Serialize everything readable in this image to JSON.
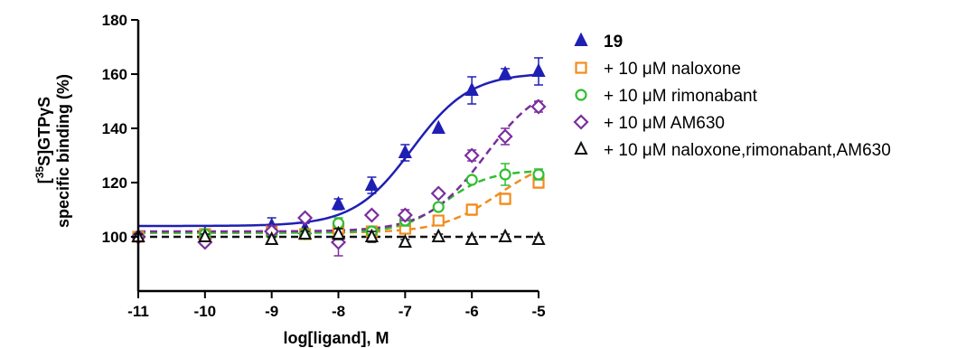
{
  "chart_data": {
    "type": "scatter",
    "xlabel": "log[ligand], M",
    "ylabel_line1": "[35S]GTPγS",
    "ylabel_line1_parts": {
      "open": "[",
      "sup": "35",
      "rest": "S]GTPγS"
    },
    "ylabel_line2": "specific binding (%)",
    "xlim": [
      -11,
      -5
    ],
    "ylim": [
      80,
      180
    ],
    "x_ticks": [
      -11,
      -10,
      -9,
      -8,
      -7,
      -6,
      -5
    ],
    "y_ticks": [
      100,
      120,
      140,
      160,
      180
    ],
    "grid": false,
    "legend_position": "right",
    "series": [
      {
        "name": "19",
        "color": "#1f1fb4",
        "marker": "triangle-filled",
        "line": "solid",
        "x": [
          -11,
          -10,
          -9,
          -8.5,
          -8,
          -7.5,
          -7,
          -6.5,
          -6,
          -5.5,
          -5
        ],
        "y": [
          100,
          101,
          104,
          103,
          112,
          119,
          131,
          140,
          154,
          160,
          161
        ],
        "err": [
          1,
          1,
          3,
          2,
          2,
          3,
          3,
          0,
          5,
          2,
          5
        ],
        "fit": {
          "bottom": 104,
          "top": 160.5,
          "logEC50": -6.9,
          "hill": 1
        }
      },
      {
        "name": "+ 10 μM naloxone",
        "color": "#f28c1e",
        "marker": "square-open",
        "line": "dashed",
        "x": [
          -11,
          -10,
          -9,
          -8.5,
          -8,
          -7.5,
          -7,
          -6.5,
          -6,
          -5.5,
          -5
        ],
        "y": [
          100,
          101,
          102,
          101,
          103,
          102,
          103,
          106,
          110,
          114,
          120
        ],
        "err": [
          1,
          1,
          1,
          1,
          2,
          1,
          1,
          1,
          2,
          2,
          2
        ],
        "fit": {
          "bottom": 101.5,
          "top": 130,
          "logEC50": -5.6,
          "hill": 1
        }
      },
      {
        "name": "+ 10 μM rimonabant",
        "color": "#2fbf2f",
        "marker": "circle-open",
        "line": "dashed",
        "x": [
          -11,
          -10,
          -9,
          -8.5,
          -8,
          -7.5,
          -7,
          -6.5,
          -6,
          -5.5,
          -5
        ],
        "y": [
          100,
          101,
          101,
          101,
          105,
          102,
          106,
          111,
          121,
          123,
          123
        ],
        "err": [
          1,
          1,
          1,
          1,
          2,
          1,
          2,
          1,
          1,
          4,
          2
        ],
        "fit": {
          "bottom": 101.5,
          "top": 124.5,
          "logEC50": -6.4,
          "hill": 1.3
        }
      },
      {
        "name": "+ 10 μM AM630",
        "color": "#7b2d9e",
        "marker": "diamond-open",
        "line": "dashed",
        "x": [
          -11,
          -10,
          -9,
          -8.5,
          -8,
          -7.5,
          -7,
          -6.5,
          -6,
          -5.5,
          -5
        ],
        "y": [
          100,
          98,
          102,
          107,
          98,
          108,
          108,
          116,
          130,
          137,
          148
        ],
        "err": [
          1,
          1,
          2,
          1,
          5,
          1,
          2,
          1,
          2,
          3,
          2
        ],
        "fit": {
          "bottom": 102,
          "top": 158,
          "logEC50": -5.8,
          "hill": 1
        }
      },
      {
        "name": "+ 10 μM naloxone,rimonabant,AM630",
        "color": "#111111",
        "marker": "triangle-open",
        "line": "dashed",
        "x": [
          -11,
          -10,
          -9,
          -8.5,
          -8,
          -7.5,
          -7,
          -6.5,
          -6,
          -5.5,
          -5
        ],
        "y": [
          100,
          100,
          99,
          101,
          101,
          100,
          98,
          100,
          99,
          100,
          99
        ],
        "err": [
          1,
          1,
          1,
          1,
          2,
          2,
          1,
          1,
          1,
          1,
          1
        ],
        "fit": {
          "bottom": 100,
          "top": 100,
          "logEC50": -7,
          "hill": 1
        }
      }
    ]
  }
}
